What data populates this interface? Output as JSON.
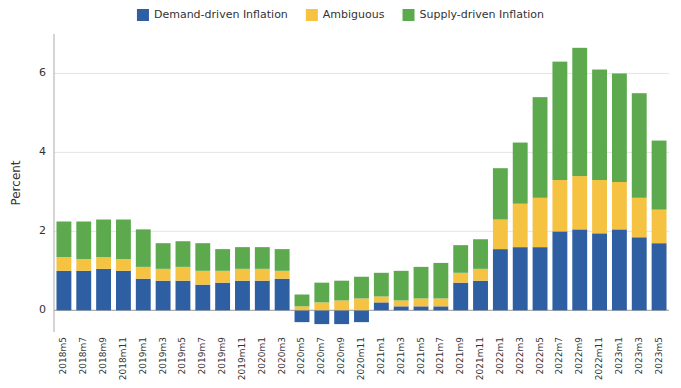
{
  "chart_data": {
    "type": "bar",
    "stacked": true,
    "ylabel": "Percent",
    "categories": [
      "2018m5",
      "2018m7",
      "2018m9",
      "2018m11",
      "2019m1",
      "2019m3",
      "2019m5",
      "2019m7",
      "2019m9",
      "2019m11",
      "2020m1",
      "2020m3",
      "2020m5",
      "2020m7",
      "2020m9",
      "2020m11",
      "2021m1",
      "2021m3",
      "2021m5",
      "2021m7",
      "2021m9",
      "2021m11",
      "2022m1",
      "2022m3",
      "2022m5",
      "2022m7",
      "2022m9",
      "2022m11",
      "2023m1",
      "2023m3",
      "2023m5"
    ],
    "series": [
      {
        "name": "Demand-driven Inflation",
        "color": "#2e5fa3",
        "values": [
          1.0,
          1.0,
          1.05,
          1.0,
          0.8,
          0.75,
          0.75,
          0.65,
          0.7,
          0.75,
          0.75,
          0.8,
          -0.3,
          -0.35,
          -0.35,
          -0.3,
          0.2,
          0.1,
          0.1,
          0.1,
          0.7,
          0.75,
          1.55,
          1.6,
          1.6,
          2.0,
          2.05,
          1.95,
          2.05,
          1.85,
          1.7
        ]
      },
      {
        "name": "Ambiguous",
        "color": "#f5c242",
        "values": [
          0.35,
          0.3,
          0.3,
          0.3,
          0.3,
          0.3,
          0.35,
          0.35,
          0.3,
          0.3,
          0.3,
          0.2,
          0.1,
          0.2,
          0.25,
          0.3,
          0.15,
          0.15,
          0.2,
          0.2,
          0.25,
          0.3,
          0.75,
          1.1,
          1.25,
          1.3,
          1.35,
          1.35,
          1.2,
          1.0,
          0.85
        ]
      },
      {
        "name": "Supply-driven Inflation",
        "color": "#5daa4e",
        "values": [
          0.9,
          0.95,
          0.95,
          1.0,
          0.95,
          0.65,
          0.65,
          0.7,
          0.55,
          0.55,
          0.55,
          0.55,
          0.3,
          0.5,
          0.5,
          0.55,
          0.6,
          0.75,
          0.8,
          0.9,
          0.7,
          0.75,
          1.3,
          1.55,
          2.55,
          3.0,
          3.25,
          2.8,
          2.75,
          2.65,
          1.75
        ]
      }
    ],
    "ylim": [
      -0.55,
      7.0
    ],
    "yticks": [
      0,
      2,
      4,
      6
    ],
    "grid": true,
    "legend": "top"
  }
}
